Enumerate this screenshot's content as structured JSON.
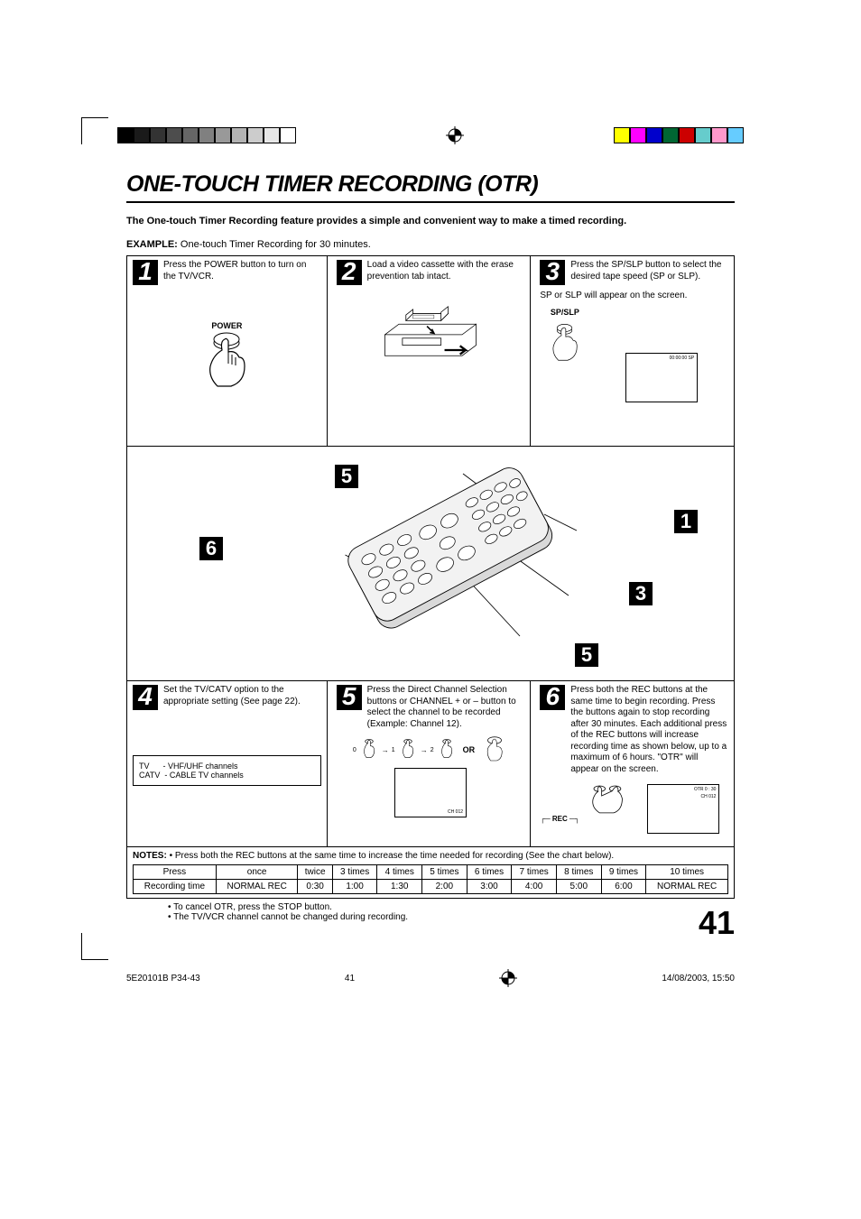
{
  "printbars_left": [
    "#000000",
    "#1a1a1a",
    "#333333",
    "#4d4d4d",
    "#666666",
    "#808080",
    "#999999",
    "#b3b3b3",
    "#cccccc",
    "#e6e6e6",
    "#ffffff"
  ],
  "printbars_right": [
    "#ffff00",
    "#ff00ff",
    "#0000cc",
    "#006633",
    "#cc0000",
    "#66cccc",
    "#ff99cc",
    "#66ccff"
  ],
  "title": "ONE-TOUCH TIMER RECORDING (OTR)",
  "intro": "The One-touch Timer Recording feature provides a simple and convenient way to make a timed recording.",
  "example_label": "EXAMPLE:",
  "example_text": "One-touch Timer Recording for 30 minutes.",
  "step1": {
    "num": "1",
    "text": "Press the POWER button to turn on the TV/VCR.",
    "btn": "POWER"
  },
  "step2": {
    "num": "2",
    "text": "Load a video cassette with the erase prevention tab intact."
  },
  "step3": {
    "num": "3",
    "text_a": "Press the SP/SLP button to select the desired tape speed (SP or SLP).",
    "text_b": "SP or SLP will appear on the screen.",
    "btn": "SP/SLP",
    "screen": "00:00:00  SP"
  },
  "callouts": {
    "c5a": "5",
    "c6": "6",
    "c1": "1",
    "c3": "3",
    "c5b": "5"
  },
  "step4": {
    "num": "4",
    "text": "Set the TV/CATV option to the appropriate setting (See page 22).",
    "box_l1": "TV      - VHF/UHF channels",
    "box_l2": "CATV  - CABLE TV channels"
  },
  "step5": {
    "num": "5",
    "text": "Press the Direct Channel Selection buttons or CHANNEL + or  – button to select the channel to be recorded (Example: Channel 12).",
    "seq": [
      "0",
      "1",
      "2"
    ],
    "or": "OR",
    "screen": "CH 012"
  },
  "step6": {
    "num": "6",
    "text": "Press both the REC buttons at the same time to begin recording. Press the buttons again to stop recording after 30 minutes. Each additional press of the REC buttons will increase recording time as shown below, up to a maximum of 6 hours. \"OTR\" will appear on the screen.",
    "btn": "REC",
    "screen_l1": "OTR 0 : 30",
    "screen_l2": "CH  012"
  },
  "notes_label": "NOTES:",
  "notes_bullet": "• Press both the REC buttons at the same time to increase the time needed for recording (See the chart below).",
  "table": {
    "headers": [
      "Press",
      "once",
      "twice",
      "3 times",
      "4 times",
      "5 times",
      "6 times",
      "7 times",
      "8 times",
      "9 times",
      "10 times"
    ],
    "row_label": "Recording time",
    "row": [
      "NORMAL REC",
      "0:30",
      "1:00",
      "1:30",
      "2:00",
      "3:00",
      "4:00",
      "5:00",
      "6:00",
      "NORMAL REC"
    ]
  },
  "footnote1": "• To cancel OTR, press the STOP button.",
  "footnote2": "• The TV/VCR channel cannot be changed during recording.",
  "page_number": "41",
  "footer_left": "5E20101B P34-43",
  "footer_center": "41",
  "footer_right": "14/08/2003, 15:50"
}
